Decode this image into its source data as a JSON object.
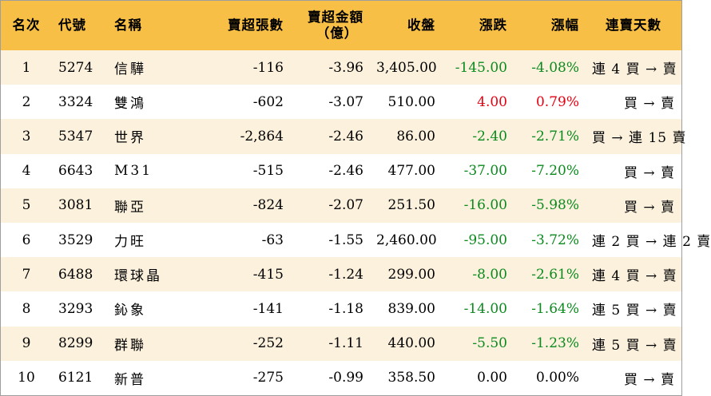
{
  "headers": {
    "rank": "名次",
    "code": "代號",
    "name": "名稱",
    "net_sell_lots": "賣超張數",
    "net_sell_amount_line1": "賣超金額",
    "net_sell_amount_line2": "（億）",
    "close": "收盤",
    "change": "漲跌",
    "change_pct": "漲幅",
    "streak": "連賣天數"
  },
  "rows": [
    {
      "rank": "1",
      "code": "5274",
      "name": "信驊",
      "lots": "-116",
      "amount": "-3.96",
      "close": "3,405.00",
      "change": "-145.00",
      "pct": "-4.08%",
      "streak": "連 4 買 → 賣",
      "dir": "neg"
    },
    {
      "rank": "2",
      "code": "3324",
      "name": "雙鴻",
      "lots": "-602",
      "amount": "-3.07",
      "close": "510.00",
      "change": "4.00",
      "pct": "0.79%",
      "streak": "買 → 賣",
      "dir": "pos"
    },
    {
      "rank": "3",
      "code": "5347",
      "name": "世界",
      "lots": "-2,864",
      "amount": "-2.46",
      "close": "86.00",
      "change": "-2.40",
      "pct": "-2.71%",
      "streak": "買 → 連 15 賣",
      "dir": "neg"
    },
    {
      "rank": "4",
      "code": "6643",
      "name": "M31",
      "lots": "-515",
      "amount": "-2.46",
      "close": "477.00",
      "change": "-37.00",
      "pct": "-7.20%",
      "streak": "買 → 賣",
      "dir": "neg"
    },
    {
      "rank": "5",
      "code": "3081",
      "name": "聯亞",
      "lots": "-824",
      "amount": "-2.07",
      "close": "251.50",
      "change": "-16.00",
      "pct": "-5.98%",
      "streak": "買 → 賣",
      "dir": "neg"
    },
    {
      "rank": "6",
      "code": "3529",
      "name": "力旺",
      "lots": "-63",
      "amount": "-1.55",
      "close": "2,460.00",
      "change": "-95.00",
      "pct": "-3.72%",
      "streak": "連 2 買 → 連 2 賣",
      "dir": "neg"
    },
    {
      "rank": "7",
      "code": "6488",
      "name": "環球晶",
      "lots": "-415",
      "amount": "-1.24",
      "close": "299.00",
      "change": "-8.00",
      "pct": "-2.61%",
      "streak": "連 4 買 → 賣",
      "dir": "neg"
    },
    {
      "rank": "8",
      "code": "3293",
      "name": "鈊象",
      "lots": "-141",
      "amount": "-1.18",
      "close": "839.00",
      "change": "-14.00",
      "pct": "-1.64%",
      "streak": "連 5 買 → 賣",
      "dir": "neg"
    },
    {
      "rank": "9",
      "code": "8299",
      "name": "群聯",
      "lots": "-252",
      "amount": "-1.11",
      "close": "440.00",
      "change": "-5.50",
      "pct": "-1.23%",
      "streak": "連 5 買 → 賣",
      "dir": "neg"
    },
    {
      "rank": "10",
      "code": "6121",
      "name": "新普",
      "lots": "-275",
      "amount": "-0.99",
      "close": "358.50",
      "change": "0.00",
      "pct": "0.00%",
      "streak": "買 → 賣",
      "dir": "zero"
    }
  ],
  "colors": {
    "header_bg": "#f7bf45",
    "odd_row_bg": "#fcf1dd",
    "even_row_bg": "#ffffff",
    "down": "#0b8a1e",
    "up": "#e60012",
    "flat": "#000000"
  }
}
